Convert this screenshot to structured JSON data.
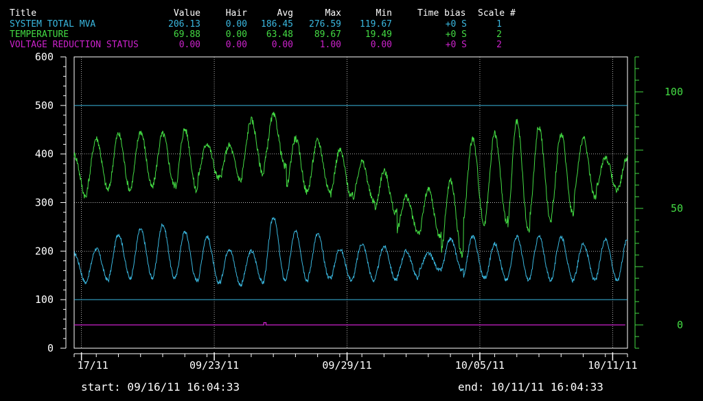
{
  "colors": {
    "background": "#000000",
    "frame": "#ffffff",
    "grid": "#ffffff",
    "mva": "#3ab8e0",
    "temperature": "#44dd44",
    "voltage": "#cc22cc",
    "right_axis": "#44dd44",
    "header_text": "#ffffff"
  },
  "legend": {
    "headers": {
      "title": "Title",
      "value": "Value",
      "hair": "Hair",
      "avg": "Avg",
      "max": "Max",
      "min": "Min",
      "time_bias": "Time bias",
      "scale": "Scale #"
    },
    "rows": [
      {
        "title": "SYSTEM TOTAL MVA",
        "value": "206.13",
        "hair": "0.00",
        "avg": "186.45",
        "max": "276.59",
        "min": "119.67",
        "time_bias": "+0 S",
        "scale": "1"
      },
      {
        "title": "TEMPERATURE",
        "value": "69.88",
        "hair": "0.00",
        "avg": "63.48",
        "max": "89.67",
        "min": "19.49",
        "time_bias": "+0 S",
        "scale": "2"
      },
      {
        "title": "VOLTAGE REDUCTION STATUS",
        "value": "0.00",
        "hair": "0.00",
        "avg": "0.00",
        "max": "1.00",
        "min": "0.00",
        "time_bias": "+0 S",
        "scale": "2"
      }
    ]
  },
  "footer": {
    "start": "start: 09/16/11 16:04:33",
    "end": "end: 10/11/11 16:04:33"
  },
  "chart_data": {
    "type": "line",
    "x_range": [
      "09/16/11 16:04:33",
      "10/11/11 16:04:33"
    ],
    "x_tick_labels": [
      "17/11",
      "09/23/11",
      "09/29/11",
      "10/05/11",
      "10/11/11"
    ],
    "x_tick_days": [
      0.33,
      6.33,
      12.33,
      18.33,
      24.33
    ],
    "left_axis": {
      "range": [
        0,
        600
      ],
      "ticks": [
        0,
        100,
        200,
        300,
        400,
        500,
        600
      ],
      "tick_labels": [
        "0",
        "100",
        "200",
        "300",
        "400",
        "500",
        "600"
      ]
    },
    "right_axis": {
      "range": [
        -10,
        115
      ],
      "ticks": [
        0,
        50,
        100
      ],
      "tick_labels": [
        "0",
        "50",
        "100"
      ]
    },
    "grid": true,
    "series": [
      {
        "name": "SYSTEM TOTAL MVA",
        "axis": "left",
        "daily_max": [
          195,
          205,
          235,
          245,
          255,
          240,
          230,
          205,
          200,
          270,
          240,
          235,
          205,
          215,
          210,
          200,
          195,
          225,
          230,
          215,
          230,
          230,
          230,
          215,
          225
        ],
        "daily_min": [
          135,
          140,
          145,
          145,
          145,
          140,
          135,
          130,
          135,
          140,
          140,
          145,
          140,
          140,
          140,
          145,
          160,
          160,
          145,
          140,
          140,
          140,
          140,
          140,
          140
        ]
      },
      {
        "name": "TEMPERATURE",
        "axis": "right",
        "daily_max": [
          73,
          80,
          82,
          83,
          82,
          84,
          78,
          77,
          88,
          90,
          80,
          79,
          75,
          70,
          66,
          55,
          58,
          62,
          80,
          82,
          87,
          85,
          82,
          80,
          72
        ],
        "daily_min": [
          55,
          58,
          58,
          59,
          60,
          58,
          63,
          62,
          65,
          68,
          57,
          58,
          55,
          53,
          48,
          40,
          38,
          30,
          43,
          45,
          40,
          45,
          48,
          55,
          58
        ]
      },
      {
        "name": "VOLTAGE REDUCTION STATUS",
        "axis": "right",
        "x_days": [
          0,
          8.57,
          8.57,
          8.67,
          8.67,
          24.9
        ],
        "values": [
          0,
          0,
          1,
          1,
          0,
          0
        ]
      }
    ],
    "reference_lines_left": [
      500,
      100
    ]
  }
}
